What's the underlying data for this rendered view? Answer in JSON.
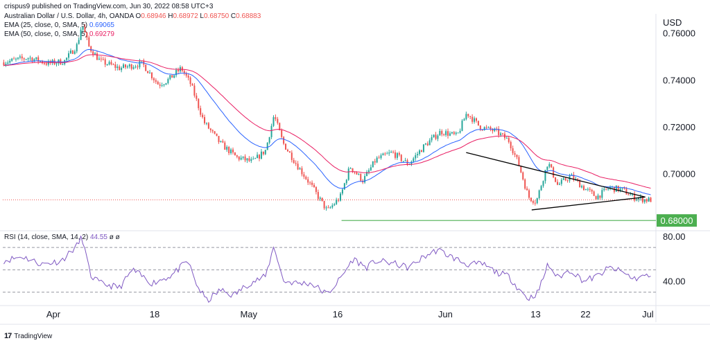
{
  "header": {
    "published": "crispus9 published on TradingView.com, Jun 30, 2022 08:58 UTC+3"
  },
  "legend": {
    "symbol": "Australian Dollar / U.S. Dollar, 4h, OANDA",
    "o_label": "O",
    "o_value": "0.68946",
    "h_label": "H",
    "h_value": "0.68972",
    "l_label": "L",
    "l_value": "0.68750",
    "c_label": "C",
    "c_value": "0.68883",
    "ema25_label": "EMA (25, close, 0, SMA, 5)",
    "ema25_value": "0.69065",
    "ema50_label": "EMA (50, close, 0, SMA, 5)",
    "ema50_value": "0.69279",
    "rsi_label": "RSI (14, close, SMA, 14, 2)",
    "rsi_value": "44.55",
    "rsi_extra": "ø  ø"
  },
  "brand": {
    "text": "TradingView"
  },
  "colors": {
    "up": "#26a69a",
    "down": "#ef5350",
    "ema25": "#2962ff",
    "ema50": "#e91e63",
    "rsi": "#7e57c2",
    "support": "#4caf50",
    "trend": "#000000"
  },
  "chart_data": [
    {
      "type": "candlestick",
      "currency_label": "USD",
      "ylim": [
        0.6765,
        0.7682
      ],
      "y_ticks": [
        "0.76000",
        "0.74000",
        "0.72000",
        "0.70000"
      ],
      "y_tick_values": [
        0.76,
        0.74,
        0.72,
        0.7
      ],
      "x_ticks": [
        "Apr",
        "18",
        "May",
        "16",
        "Jun",
        "13",
        "22",
        "Jul"
      ],
      "support_level": 0.68,
      "support_label": "0.68000",
      "current_close": 0.68883,
      "trendline_upper": [
        [
          0.714,
          0.709
        ],
        [
          0.99,
          0.69
        ]
      ],
      "trendline_lower": [
        [
          0.815,
          0.6845
        ],
        [
          0.99,
          0.69
        ]
      ],
      "price_path": [
        [
          0.0,
          0.7475
        ],
        [
          0.04,
          0.7495
        ],
        [
          0.07,
          0.747
        ],
        [
          0.095,
          0.748
        ],
        [
          0.115,
          0.755
        ],
        [
          0.122,
          0.764
        ],
        [
          0.133,
          0.754
        ],
        [
          0.15,
          0.748
        ],
        [
          0.18,
          0.745
        ],
        [
          0.215,
          0.747
        ],
        [
          0.24,
          0.738
        ],
        [
          0.255,
          0.74
        ],
        [
          0.275,
          0.745
        ],
        [
          0.29,
          0.738
        ],
        [
          0.31,
          0.722
        ],
        [
          0.335,
          0.713
        ],
        [
          0.36,
          0.707
        ],
        [
          0.385,
          0.705
        ],
        [
          0.405,
          0.71
        ],
        [
          0.418,
          0.725
        ],
        [
          0.432,
          0.713
        ],
        [
          0.455,
          0.703
        ],
        [
          0.475,
          0.695
        ],
        [
          0.5,
          0.684
        ],
        [
          0.52,
          0.69
        ],
        [
          0.535,
          0.703
        ],
        [
          0.555,
          0.697
        ],
        [
          0.575,
          0.706
        ],
        [
          0.6,
          0.709
        ],
        [
          0.625,
          0.704
        ],
        [
          0.65,
          0.712
        ],
        [
          0.675,
          0.718
        ],
        [
          0.7,
          0.716
        ],
        [
          0.715,
          0.726
        ],
        [
          0.735,
          0.72
        ],
        [
          0.76,
          0.718
        ],
        [
          0.78,
          0.714
        ],
        [
          0.795,
          0.704
        ],
        [
          0.81,
          0.69
        ],
        [
          0.822,
          0.688
        ],
        [
          0.84,
          0.705
        ],
        [
          0.855,
          0.695
        ],
        [
          0.875,
          0.699
        ],
        [
          0.895,
          0.694
        ],
        [
          0.915,
          0.69
        ],
        [
          0.935,
          0.694
        ],
        [
          0.955,
          0.693
        ],
        [
          0.972,
          0.69
        ],
        [
          0.99,
          0.6888
        ]
      ]
    },
    {
      "type": "line",
      "name": "RSI",
      "ylim": [
        18,
        85
      ],
      "y_ticks": [
        "80.00",
        "40.00"
      ],
      "y_tick_values": [
        80,
        40
      ],
      "levels": [
        70,
        50,
        30
      ],
      "path": [
        [
          0.0,
          58
        ],
        [
          0.03,
          62
        ],
        [
          0.06,
          55
        ],
        [
          0.09,
          58
        ],
        [
          0.115,
          72
        ],
        [
          0.122,
          80
        ],
        [
          0.135,
          45
        ],
        [
          0.15,
          38
        ],
        [
          0.18,
          34
        ],
        [
          0.2,
          50
        ],
        [
          0.23,
          38
        ],
        [
          0.26,
          45
        ],
        [
          0.285,
          58
        ],
        [
          0.3,
          35
        ],
        [
          0.315,
          22
        ],
        [
          0.335,
          32
        ],
        [
          0.355,
          27
        ],
        [
          0.38,
          38
        ],
        [
          0.405,
          44
        ],
        [
          0.418,
          72
        ],
        [
          0.432,
          40
        ],
        [
          0.455,
          38
        ],
        [
          0.475,
          38
        ],
        [
          0.5,
          28
        ],
        [
          0.52,
          42
        ],
        [
          0.54,
          60
        ],
        [
          0.56,
          52
        ],
        [
          0.575,
          58
        ],
        [
          0.6,
          56
        ],
        [
          0.625,
          52
        ],
        [
          0.65,
          62
        ],
        [
          0.67,
          68
        ],
        [
          0.69,
          62
        ],
        [
          0.715,
          55
        ],
        [
          0.74,
          55
        ],
        [
          0.76,
          48
        ],
        [
          0.78,
          44
        ],
        [
          0.795,
          33
        ],
        [
          0.81,
          24
        ],
        [
          0.825,
          30
        ],
        [
          0.84,
          55
        ],
        [
          0.855,
          43
        ],
        [
          0.875,
          50
        ],
        [
          0.895,
          40
        ],
        [
          0.915,
          44
        ],
        [
          0.935,
          52
        ],
        [
          0.955,
          48
        ],
        [
          0.972,
          42
        ],
        [
          0.99,
          44.55
        ]
      ]
    }
  ]
}
